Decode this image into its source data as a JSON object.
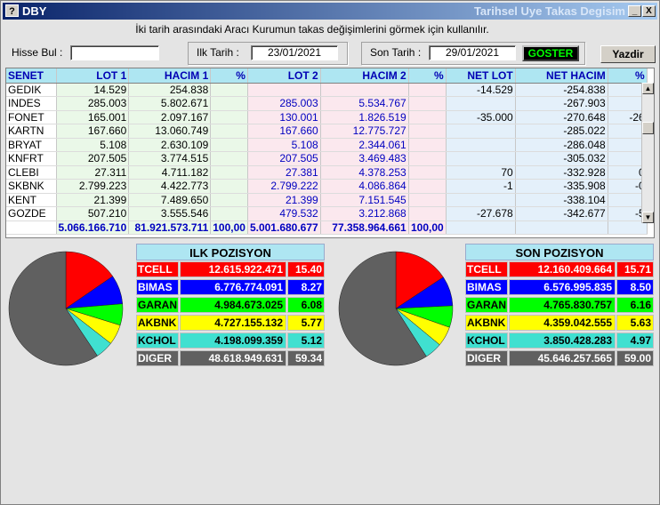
{
  "window": {
    "icon": "?",
    "title_left": "DBY",
    "title_right": "Tarihsel Uye Takas Degisim",
    "minimize_glyph": "_",
    "close_glyph": "X"
  },
  "description": "İki tarih arasındaki  Aracı Kurumun takas değişimlerini görmek için kullanılır.",
  "search": {
    "label": "Hisse Bul :",
    "value": ""
  },
  "start_date": {
    "label": "Ilk Tarih :",
    "value": "23/01/2021"
  },
  "end_date": {
    "label": "Son Tarih :",
    "value": "29/01/2021"
  },
  "buttons": {
    "goster": "GOSTER",
    "yazdir": "Yazdir"
  },
  "grid": {
    "headers": [
      "SENET",
      "LOT 1",
      "HACIM 1",
      "%",
      "LOT 2",
      "HACIM 2",
      "%",
      "NET LOT",
      "NET HACIM",
      "%"
    ],
    "rows": [
      [
        "GEDIK",
        "14.529",
        "254.838",
        "",
        "",
        "",
        "",
        "-14.529",
        "-254.838",
        ""
      ],
      [
        "INDES",
        "285.003",
        "5.802.671",
        "",
        "285.003",
        "5.534.767",
        "",
        "",
        "-267.903",
        ""
      ],
      [
        "FONET",
        "165.001",
        "2.097.167",
        "",
        "130.001",
        "1.826.519",
        "",
        "-35.000",
        "-270.648",
        "-26"
      ],
      [
        "KARTN",
        "167.660",
        "13.060.749",
        "",
        "167.660",
        "12.775.727",
        "",
        "",
        "-285.022",
        ""
      ],
      [
        "BRYAT",
        "5.108",
        "2.630.109",
        "",
        "5.108",
        "2.344.061",
        "",
        "",
        "-286.048",
        ""
      ],
      [
        "KNFRT",
        "207.505",
        "3.774.515",
        "",
        "207.505",
        "3.469.483",
        "",
        "",
        "-305.032",
        ""
      ],
      [
        "CLEBI",
        "27.311",
        "4.711.182",
        "",
        "27.381",
        "4.378.253",
        "",
        "70",
        "-332.928",
        "0"
      ],
      [
        "SKBNK",
        "2.799.223",
        "4.422.773",
        "",
        "2.799.222",
        "4.086.864",
        "",
        "-1",
        "-335.908",
        "-0"
      ],
      [
        "KENT",
        "21.399",
        "7.489.650",
        "",
        "21.399",
        "7.151.545",
        "",
        "",
        "-338.104",
        ""
      ],
      [
        "GOZDE",
        "507.210",
        "3.555.546",
        "",
        "479.532",
        "3.212.868",
        "",
        "-27.678",
        "-342.677",
        "-5"
      ]
    ],
    "totals": [
      "",
      "5.066.166.710",
      "81.921.573.711",
      "100,00",
      "5.001.680.677",
      "77.358.964.661",
      "100,00",
      "",
      "",
      ""
    ]
  },
  "ilk_pozisyon": {
    "title": "ILK POZISYON",
    "rows": [
      {
        "name": "TCELL",
        "value": "12.615.922.471",
        "pct": "15.40",
        "pct_num": 15.4,
        "bg": "#ff0000",
        "fg": "#ffffff"
      },
      {
        "name": "BIMAS",
        "value": "6.776.774.091",
        "pct": "8.27",
        "pct_num": 8.27,
        "bg": "#0000ff",
        "fg": "#ffffff"
      },
      {
        "name": "GARAN",
        "value": "4.984.673.025",
        "pct": "6.08",
        "pct_num": 6.08,
        "bg": "#00ff00",
        "fg": "#000000"
      },
      {
        "name": "AKBNK",
        "value": "4.727.155.132",
        "pct": "5.77",
        "pct_num": 5.77,
        "bg": "#ffff00",
        "fg": "#000000"
      },
      {
        "name": "KCHOL",
        "value": "4.198.099.359",
        "pct": "5.12",
        "pct_num": 5.12,
        "bg": "#40e0d0",
        "fg": "#000000"
      },
      {
        "name": "DIGER",
        "value": "48.618.949.631",
        "pct": "59.34",
        "pct_num": 59.34,
        "bg": "#606060",
        "fg": "#ffffff"
      }
    ]
  },
  "son_pozisyon": {
    "title": "SON POZISYON",
    "rows": [
      {
        "name": "TCELL",
        "value": "12.160.409.664",
        "pct": "15.71",
        "pct_num": 15.71,
        "bg": "#ff0000",
        "fg": "#ffffff"
      },
      {
        "name": "BIMAS",
        "value": "6.576.995.835",
        "pct": "8.50",
        "pct_num": 8.5,
        "bg": "#0000ff",
        "fg": "#ffffff"
      },
      {
        "name": "GARAN",
        "value": "4.765.830.757",
        "pct": "6.16",
        "pct_num": 6.16,
        "bg": "#00ff00",
        "fg": "#000000"
      },
      {
        "name": "AKBNK",
        "value": "4.359.042.555",
        "pct": "5.63",
        "pct_num": 5.63,
        "bg": "#ffff00",
        "fg": "#000000"
      },
      {
        "name": "KCHOL",
        "value": "3.850.428.283",
        "pct": "4.97",
        "pct_num": 4.97,
        "bg": "#40e0d0",
        "fg": "#000000"
      },
      {
        "name": "DIGER",
        "value": "45.646.257.565",
        "pct": "59.00",
        "pct_num": 59.0,
        "bg": "#606060",
        "fg": "#ffffff"
      }
    ]
  }
}
